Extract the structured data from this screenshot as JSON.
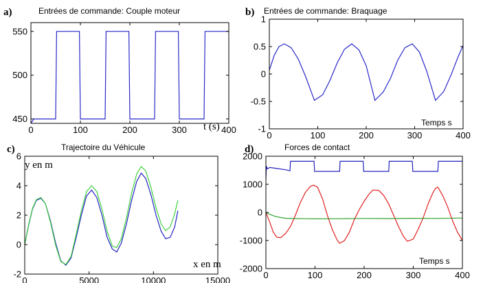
{
  "chart_data": [
    {
      "type": "line",
      "panel_letter": "a)",
      "title": "Entrées de commande: Couple moteur",
      "xlabel": "t (s)",
      "ylabel": "",
      "xlim": [
        0,
        400
      ],
      "ylim": [
        445,
        560
      ],
      "xticks": [
        0,
        100,
        200,
        300,
        400
      ],
      "yticks": [
        450,
        500,
        550
      ],
      "series": [
        {
          "color": "#2828c8",
          "x": [
            0,
            6,
            50,
            52,
            98,
            100,
            150,
            152,
            198,
            200,
            250,
            252,
            298,
            300,
            350,
            352,
            400
          ],
          "y": [
            445,
            450,
            450,
            550,
            550,
            450,
            450,
            550,
            550,
            450,
            450,
            550,
            550,
            450,
            450,
            550,
            550
          ]
        }
      ]
    },
    {
      "type": "line",
      "panel_letter": "b)",
      "title": "Entrées de commande: Braquage",
      "xlabel": "Temps s",
      "ylabel": "",
      "xlim": [
        0,
        400
      ],
      "ylim": [
        -1,
        1
      ],
      "xticks": [
        0,
        100,
        200,
        300,
        400
      ],
      "yticks": [
        -1,
        -0.5,
        0,
        0.5,
        1
      ],
      "series": [
        {
          "color": "#2828c8",
          "x": [
            0,
            10,
            20,
            31,
            45,
            60,
            75,
            93,
            110,
            125,
            140,
            155,
            170,
            185,
            200,
            218,
            235,
            250,
            265,
            280,
            295,
            310,
            325,
            343,
            360,
            375,
            390,
            400
          ],
          "y": [
            0.07,
            0.34,
            0.5,
            0.55,
            0.48,
            0.27,
            -0.05,
            -0.48,
            -0.38,
            -0.12,
            0.2,
            0.45,
            0.55,
            0.44,
            0.15,
            -0.48,
            -0.33,
            -0.08,
            0.25,
            0.48,
            0.55,
            0.4,
            0.05,
            -0.48,
            -0.32,
            -0.02,
            0.32,
            0.52
          ]
        }
      ]
    },
    {
      "type": "line",
      "panel_letter": "c)",
      "title": "Trajectoire du Véhicule",
      "xlabel": "x en m",
      "ylabel": "y en m",
      "xlim": [
        0,
        15000
      ],
      "ylim": [
        -2,
        6
      ],
      "xticks": [
        0,
        5000,
        10000,
        15000
      ],
      "yticks": [
        -2,
        0,
        2,
        4,
        6
      ],
      "series": [
        {
          "color": "#2020c0",
          "x": [
            0,
            300,
            600,
            900,
            1250,
            1600,
            2000,
            2400,
            2800,
            3200,
            3600,
            4000,
            4400,
            4800,
            5200,
            5600,
            6000,
            6400,
            6800,
            7150,
            7500,
            7900,
            8300,
            8700,
            9050,
            9400,
            9800,
            10200,
            10600,
            10950,
            11300,
            11650,
            11900
          ],
          "y": [
            0,
            1.3,
            2.4,
            3.0,
            3.15,
            2.8,
            1.6,
            0.1,
            -1.1,
            -1.4,
            -0.9,
            0.5,
            2.0,
            3.3,
            3.7,
            3.2,
            2.0,
            0.5,
            -0.3,
            -0.5,
            0.1,
            1.4,
            3.0,
            4.3,
            4.85,
            4.5,
            3.4,
            2.0,
            0.9,
            0.4,
            0.5,
            1.2,
            2.3
          ]
        },
        {
          "color": "#40d040",
          "x": [
            0,
            300,
            600,
            900,
            1250,
            1600,
            2000,
            2400,
            2800,
            3200,
            3600,
            4000,
            4400,
            4800,
            5200,
            5600,
            6000,
            6400,
            6800,
            7150,
            7500,
            7900,
            8300,
            8700,
            9050,
            9400,
            9800,
            10200,
            10600,
            10950,
            11300,
            11650,
            11900
          ],
          "y": [
            0,
            1.35,
            2.45,
            3.05,
            3.2,
            2.8,
            1.5,
            -0.05,
            -1.15,
            -1.35,
            -0.8,
            0.7,
            2.3,
            3.6,
            4.0,
            3.6,
            2.4,
            0.9,
            -0.1,
            -0.2,
            0.4,
            1.8,
            3.5,
            4.8,
            5.3,
            5.0,
            3.9,
            2.5,
            1.4,
            0.95,
            1.2,
            2.1,
            3.0
          ]
        }
      ]
    },
    {
      "type": "line",
      "panel_letter": "d)",
      "title": "Forces de contact",
      "xlabel": "Temps s",
      "ylabel": "",
      "xlim": [
        0,
        400
      ],
      "ylim": [
        -2000,
        2000
      ],
      "xticks": [
        0,
        100,
        200,
        300,
        400
      ],
      "yticks": [
        -2000,
        -1000,
        0,
        1000,
        2000
      ],
      "series": [
        {
          "color": "#2020c0",
          "x": [
            0,
            1,
            3,
            8,
            20,
            40,
            49,
            50,
            98,
            99,
            150,
            151,
            198,
            199,
            250,
            251,
            298,
            299,
            350,
            351,
            400
          ],
          "y": [
            1180,
            1650,
            1550,
            1600,
            1570,
            1520,
            1480,
            1820,
            1820,
            1460,
            1460,
            1820,
            1820,
            1460,
            1460,
            1820,
            1820,
            1460,
            1460,
            1820,
            1820
          ]
        },
        {
          "color": "#e02020",
          "x": [
            0,
            8,
            15,
            22,
            30,
            40,
            50,
            60,
            70,
            80,
            90,
            97,
            105,
            115,
            125,
            135,
            145,
            150,
            160,
            170,
            180,
            190,
            200,
            210,
            218,
            230,
            240,
            250,
            260,
            270,
            280,
            288,
            300,
            310,
            320,
            330,
            340,
            345,
            350,
            360,
            370,
            380,
            390,
            400
          ],
          "y": [
            0,
            -350,
            -700,
            -880,
            -900,
            -750,
            -500,
            -100,
            350,
            700,
            920,
            970,
            900,
            500,
            -100,
            -600,
            -980,
            -1100,
            -1000,
            -700,
            -250,
            100,
            400,
            650,
            800,
            780,
            600,
            300,
            -100,
            -500,
            -850,
            -1030,
            -950,
            -600,
            -200,
            300,
            700,
            850,
            900,
            600,
            200,
            -300,
            -700,
            -1000
          ]
        },
        {
          "color": "#30a030",
          "x": [
            0,
            10,
            20,
            40,
            60,
            80,
            100,
            150,
            200,
            250,
            300,
            350,
            400
          ],
          "y": [
            0,
            -80,
            -150,
            -210,
            -220,
            -225,
            -230,
            -225,
            -215,
            -220,
            -210,
            -215,
            -200
          ]
        }
      ]
    }
  ]
}
